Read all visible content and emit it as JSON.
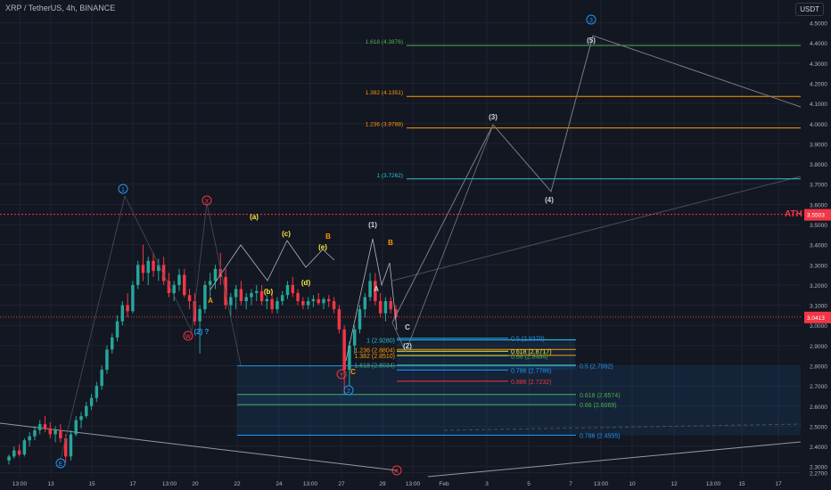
{
  "header": {
    "symbol": "XRP / TetherUS, 4h, BINANCE"
  },
  "currency_button": "USDT",
  "ath_label": "ATH",
  "colors": {
    "bg": "#131722",
    "up": "#26a69a",
    "down": "#f23645",
    "grid": "#1f2330",
    "blue": "#2196f3",
    "green": "#4caf50",
    "orange": "#ff9800",
    "teal": "#26c6da",
    "yellow": "#ffeb3b",
    "red": "#f23645",
    "wave_blue": "#2196f3",
    "white": "#d1d4dc"
  },
  "chart_data": {
    "type": "candlestick",
    "price_axis": {
      "min": 2.25,
      "max": 4.56,
      "ticks": [
        "4.5000",
        "4.4000",
        "4.3000",
        "4.2000",
        "4.1000",
        "4.0000",
        "3.9000",
        "3.8000",
        "3.7000",
        "3.6000",
        "3.5000",
        "3.4000",
        "3.3000",
        "3.2000",
        "3.1000",
        "3.0000",
        "2.9000",
        "2.8000",
        "2.7000",
        "2.6000",
        "2.5000",
        "2.4000",
        "2.3000",
        "2.2700"
      ],
      "current_price": "3.0413",
      "ath_price": "3.5503",
      "ath_value": 3.5503
    },
    "time_axis": {
      "ticks": [
        "13:00",
        "13",
        "15",
        "17",
        "13:00",
        "20",
        "22",
        "24",
        "13:00",
        "27",
        "29",
        "13:00",
        "Feb",
        "3",
        "5",
        "7",
        "13:00",
        "10",
        "12",
        "13:00",
        "15",
        "17"
      ]
    },
    "fib_levels_upper": [
      {
        "label": "1.618 (4.3876)",
        "price": 4.3876,
        "color": "green"
      },
      {
        "label": "1.382 (4.1351)",
        "price": 4.1351,
        "color": "orange"
      },
      {
        "label": "1.236 (3.9788)",
        "price": 3.9788,
        "color": "orange"
      },
      {
        "label": "1 (3.7262)",
        "price": 3.7262,
        "color": "teal"
      }
    ],
    "fib_levels_short": [
      {
        "label": "1 (2.9280)",
        "price": 2.928,
        "color": "teal"
      },
      {
        "label": "1.236 (2.8804)",
        "price": 2.8804,
        "color": "orange"
      },
      {
        "label": "1.382 (2.8510)",
        "price": 2.851,
        "color": "orange"
      },
      {
        "label": "1.618 (2.8034)",
        "price": 2.8034,
        "color": "green"
      }
    ],
    "fib_levels_right": [
      {
        "label": "0.5 (2.9370)",
        "price": 2.937,
        "color": "blue"
      },
      {
        "label": "0.618 (2.8717)",
        "price": 2.8717,
        "color": "yellow"
      },
      {
        "label": "0.66 (2.8484)",
        "price": 2.8484,
        "color": "green"
      },
      {
        "label": "0.786 (2.7786)",
        "price": 2.7786,
        "color": "blue"
      },
      {
        "label": "0.886 (2.7232)",
        "price": 2.7232,
        "color": "red"
      }
    ],
    "fib_levels_lower": [
      {
        "label": "0.5 (2.7992)",
        "price": 2.7992,
        "color": "blue"
      },
      {
        "label": "0.618 (2.6574)",
        "price": 2.6574,
        "color": "green"
      },
      {
        "label": "0.66 (2.6069)",
        "price": 2.6069,
        "color": "green"
      },
      {
        "label": "0.786 (2.4555)",
        "price": 2.4555,
        "color": "blue"
      }
    ],
    "wave_labels": [
      {
        "text": "1",
        "style": "circle-blue"
      },
      {
        "text": "X",
        "style": "circle-red"
      },
      {
        "text": "W",
        "style": "circle-red"
      },
      {
        "text": "(2) ?",
        "style": "blue"
      },
      {
        "text": "E",
        "style": "circle-blue"
      },
      {
        "text": "A",
        "style": "orange"
      },
      {
        "text": "(a)",
        "style": "yellow"
      },
      {
        "text": "(b)",
        "style": "yellow"
      },
      {
        "text": "(c)",
        "style": "yellow"
      },
      {
        "text": "(d)",
        "style": "yellow"
      },
      {
        "text": "(e)",
        "style": "yellow"
      },
      {
        "text": "B",
        "style": "orange"
      },
      {
        "text": "Y",
        "style": "circle-red"
      },
      {
        "text": "C",
        "style": "orange"
      },
      {
        "text": "2",
        "style": "circle-blue"
      },
      {
        "text": "(1)",
        "style": "white"
      },
      {
        "text": "A",
        "style": "white"
      },
      {
        "text": "B",
        "style": "orange"
      },
      {
        "text": "C",
        "style": "white"
      },
      {
        "text": "(2)",
        "style": "white"
      },
      {
        "text": "(3)",
        "style": "white"
      },
      {
        "text": "(4)",
        "style": "white"
      },
      {
        "text": "(5)",
        "style": "white"
      },
      {
        "text": "3",
        "style": "circle-blue"
      },
      {
        "text": "4",
        "style": "circle-red"
      }
    ],
    "candles": [
      {
        "o": 2.33,
        "h": 2.36,
        "l": 2.31,
        "c": 2.35
      },
      {
        "o": 2.35,
        "h": 2.4,
        "l": 2.34,
        "c": 2.38
      },
      {
        "o": 2.38,
        "h": 2.41,
        "l": 2.35,
        "c": 2.36
      },
      {
        "o": 2.36,
        "h": 2.44,
        "l": 2.35,
        "c": 2.43
      },
      {
        "o": 2.43,
        "h": 2.47,
        "l": 2.4,
        "c": 2.45
      },
      {
        "o": 2.45,
        "h": 2.5,
        "l": 2.43,
        "c": 2.48
      },
      {
        "o": 2.48,
        "h": 2.53,
        "l": 2.46,
        "c": 2.51
      },
      {
        "o": 2.51,
        "h": 2.55,
        "l": 2.47,
        "c": 2.49
      },
      {
        "o": 2.49,
        "h": 2.52,
        "l": 2.44,
        "c": 2.46
      },
      {
        "o": 2.46,
        "h": 2.5,
        "l": 2.42,
        "c": 2.48
      },
      {
        "o": 2.48,
        "h": 2.51,
        "l": 2.42,
        "c": 2.44
      },
      {
        "o": 2.44,
        "h": 2.46,
        "l": 2.32,
        "c": 2.35
      },
      {
        "o": 2.35,
        "h": 2.48,
        "l": 2.33,
        "c": 2.46
      },
      {
        "o": 2.46,
        "h": 2.55,
        "l": 2.45,
        "c": 2.53
      },
      {
        "o": 2.53,
        "h": 2.57,
        "l": 2.49,
        "c": 2.55
      },
      {
        "o": 2.55,
        "h": 2.62,
        "l": 2.54,
        "c": 2.6
      },
      {
        "o": 2.6,
        "h": 2.66,
        "l": 2.58,
        "c": 2.64
      },
      {
        "o": 2.64,
        "h": 2.72,
        "l": 2.62,
        "c": 2.7
      },
      {
        "o": 2.7,
        "h": 2.8,
        "l": 2.68,
        "c": 2.78
      },
      {
        "o": 2.78,
        "h": 2.9,
        "l": 2.76,
        "c": 2.88
      },
      {
        "o": 2.88,
        "h": 2.96,
        "l": 2.86,
        "c": 2.94
      },
      {
        "o": 2.94,
        "h": 3.05,
        "l": 2.92,
        "c": 3.02
      },
      {
        "o": 3.02,
        "h": 3.12,
        "l": 3.0,
        "c": 3.1
      },
      {
        "o": 3.1,
        "h": 3.16,
        "l": 3.04,
        "c": 3.07
      },
      {
        "o": 3.07,
        "h": 3.22,
        "l": 3.06,
        "c": 3.2
      },
      {
        "o": 3.2,
        "h": 3.32,
        "l": 3.18,
        "c": 3.3
      },
      {
        "o": 3.3,
        "h": 3.4,
        "l": 3.22,
        "c": 3.26
      },
      {
        "o": 3.26,
        "h": 3.34,
        "l": 3.2,
        "c": 3.32
      },
      {
        "o": 3.32,
        "h": 3.36,
        "l": 3.24,
        "c": 3.27
      },
      {
        "o": 3.27,
        "h": 3.33,
        "l": 3.22,
        "c": 3.3
      },
      {
        "o": 3.3,
        "h": 3.34,
        "l": 3.2,
        "c": 3.22
      },
      {
        "o": 3.22,
        "h": 3.26,
        "l": 3.14,
        "c": 3.16
      },
      {
        "o": 3.16,
        "h": 3.22,
        "l": 3.12,
        "c": 3.2
      },
      {
        "o": 3.2,
        "h": 3.28,
        "l": 3.17,
        "c": 3.25
      },
      {
        "o": 3.25,
        "h": 3.28,
        "l": 3.14,
        "c": 3.15
      },
      {
        "o": 3.15,
        "h": 3.18,
        "l": 3.08,
        "c": 3.12
      },
      {
        "o": 3.12,
        "h": 3.16,
        "l": 3.0,
        "c": 3.02
      },
      {
        "o": 3.02,
        "h": 3.1,
        "l": 2.86,
        "c": 3.08
      },
      {
        "o": 3.08,
        "h": 3.22,
        "l": 3.06,
        "c": 3.2
      },
      {
        "o": 3.2,
        "h": 3.26,
        "l": 3.14,
        "c": 3.22
      },
      {
        "o": 3.22,
        "h": 3.3,
        "l": 3.18,
        "c": 3.28
      },
      {
        "o": 3.28,
        "h": 3.36,
        "l": 3.2,
        "c": 3.24
      },
      {
        "o": 3.24,
        "h": 3.28,
        "l": 3.08,
        "c": 3.1
      },
      {
        "o": 3.1,
        "h": 3.16,
        "l": 3.04,
        "c": 3.14
      },
      {
        "o": 3.14,
        "h": 3.2,
        "l": 3.08,
        "c": 3.18
      },
      {
        "o": 3.18,
        "h": 3.22,
        "l": 3.1,
        "c": 3.12
      },
      {
        "o": 3.12,
        "h": 3.16,
        "l": 3.08,
        "c": 3.14
      },
      {
        "o": 3.14,
        "h": 3.18,
        "l": 3.1,
        "c": 3.16
      },
      {
        "o": 3.16,
        "h": 3.2,
        "l": 3.12,
        "c": 3.17
      },
      {
        "o": 3.17,
        "h": 3.2,
        "l": 3.1,
        "c": 3.12
      },
      {
        "o": 3.12,
        "h": 3.15,
        "l": 3.08,
        "c": 3.13
      },
      {
        "o": 3.13,
        "h": 3.16,
        "l": 3.06,
        "c": 3.08
      },
      {
        "o": 3.08,
        "h": 3.14,
        "l": 3.06,
        "c": 3.12
      },
      {
        "o": 3.12,
        "h": 3.17,
        "l": 3.1,
        "c": 3.15
      },
      {
        "o": 3.15,
        "h": 3.22,
        "l": 3.13,
        "c": 3.2
      },
      {
        "o": 3.2,
        "h": 3.24,
        "l": 3.14,
        "c": 3.16
      },
      {
        "o": 3.16,
        "h": 3.18,
        "l": 3.1,
        "c": 3.12
      },
      {
        "o": 3.12,
        "h": 3.14,
        "l": 3.08,
        "c": 3.1
      },
      {
        "o": 3.1,
        "h": 3.14,
        "l": 3.08,
        "c": 3.12
      },
      {
        "o": 3.12,
        "h": 3.15,
        "l": 3.09,
        "c": 3.13
      },
      {
        "o": 3.13,
        "h": 3.16,
        "l": 3.1,
        "c": 3.11
      },
      {
        "o": 3.11,
        "h": 3.14,
        "l": 3.08,
        "c": 3.13
      },
      {
        "o": 3.13,
        "h": 3.15,
        "l": 3.09,
        "c": 3.12
      },
      {
        "o": 3.12,
        "h": 3.14,
        "l": 3.06,
        "c": 3.08
      },
      {
        "o": 3.08,
        "h": 3.1,
        "l": 2.96,
        "c": 2.98
      },
      {
        "o": 2.98,
        "h": 3.0,
        "l": 2.66,
        "c": 2.78
      },
      {
        "o": 2.78,
        "h": 2.92,
        "l": 2.7,
        "c": 2.9
      },
      {
        "o": 2.9,
        "h": 3.0,
        "l": 2.86,
        "c": 2.98
      },
      {
        "o": 2.98,
        "h": 3.1,
        "l": 2.96,
        "c": 3.08
      },
      {
        "o": 3.08,
        "h": 3.16,
        "l": 3.04,
        "c": 3.14
      },
      {
        "o": 3.14,
        "h": 3.26,
        "l": 3.12,
        "c": 3.22
      },
      {
        "o": 3.22,
        "h": 3.26,
        "l": 3.1,
        "c": 3.12
      },
      {
        "o": 3.12,
        "h": 3.16,
        "l": 3.04,
        "c": 3.06
      },
      {
        "o": 3.06,
        "h": 3.14,
        "l": 3.02,
        "c": 3.12
      },
      {
        "o": 3.12,
        "h": 3.14,
        "l": 3.06,
        "c": 3.08
      },
      {
        "o": 3.08,
        "h": 3.1,
        "l": 3.02,
        "c": 3.04
      }
    ]
  }
}
